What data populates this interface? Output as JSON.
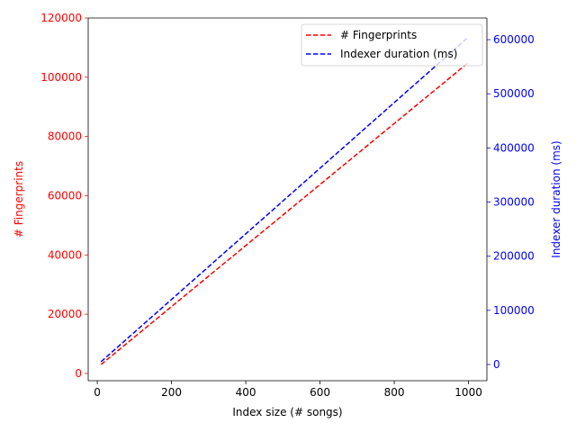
{
  "chart_data": {
    "type": "line",
    "title": "",
    "xlabel": "Index size (# songs)",
    "xlim": [
      -24.5,
      1049.5
    ],
    "xticks": [
      0,
      200,
      400,
      600,
      800,
      1000
    ],
    "x": [
      10,
      1000
    ],
    "left_axis": {
      "label": "# Fingerprints",
      "color": "#ff0000",
      "ylim": [
        -2450,
        120000
      ],
      "ticks": [
        0,
        20000,
        40000,
        60000,
        80000,
        100000,
        120000
      ]
    },
    "right_axis": {
      "label": "Indexer duration (ms)",
      "color": "#0000ff",
      "ylim": [
        -30000,
        640000
      ],
      "ticks": [
        0,
        100000,
        200000,
        300000,
        400000,
        500000,
        600000
      ]
    },
    "series": [
      {
        "name": "# Fingerprints",
        "axis": "left",
        "color": "#ff0000",
        "style": "dashed",
        "values": [
          3000,
          105000
        ]
      },
      {
        "name": "Indexer duration (ms)",
        "axis": "right",
        "color": "#0000ff",
        "style": "dashed",
        "values": [
          5000,
          605000
        ]
      }
    ],
    "legend": "top-right",
    "grid": false
  }
}
